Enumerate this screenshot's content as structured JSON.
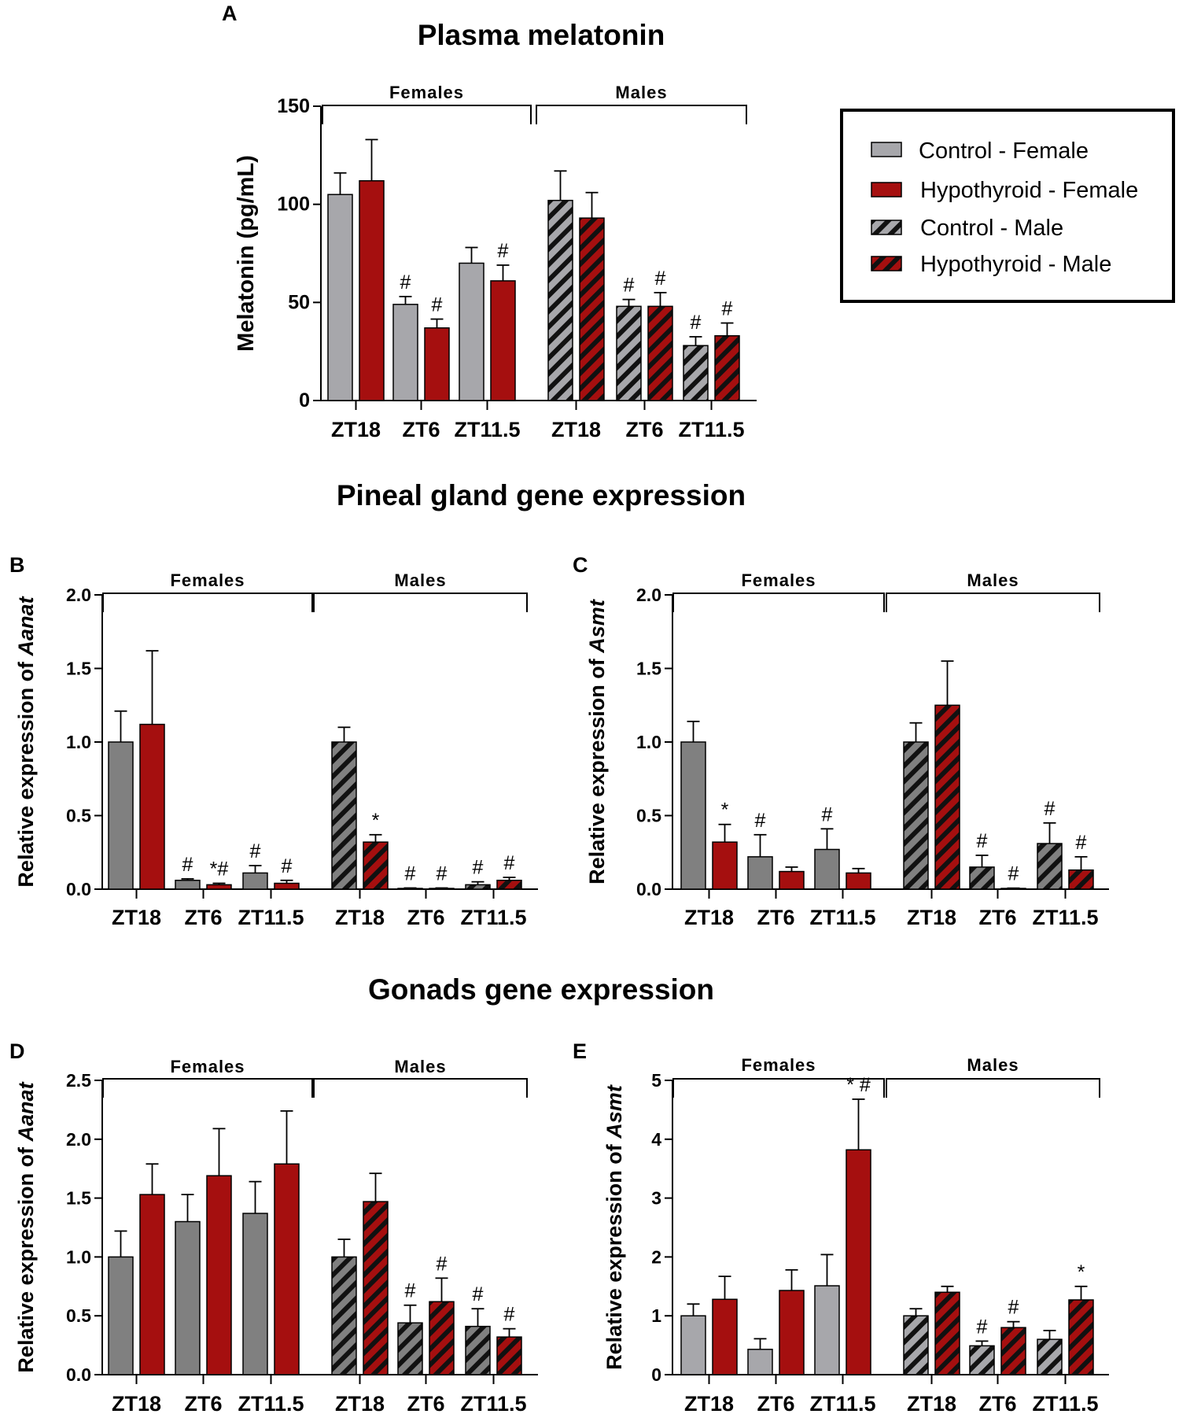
{
  "colors": {
    "control": "#a7a7ab",
    "control_dark": "#808080",
    "hypothyroid": "#a50f0f",
    "stripe": "#000000",
    "axis": "#000000"
  },
  "section_titles": {
    "pineal": "Pineal gland gene expression",
    "gonads": "Gonads gene expression"
  },
  "legend": {
    "items": [
      {
        "label": "Control - Female",
        "pattern": "solid-grey"
      },
      {
        "label": "Hypothyroid - Female",
        "pattern": "solid-red"
      },
      {
        "label": "Control - Male",
        "pattern": "hatched-grey"
      },
      {
        "label": "Hypothyroid - Male",
        "pattern": "hatched-red"
      }
    ]
  },
  "chart_data": [
    {
      "panel": "A",
      "type": "bar",
      "title": "Plasma melatonin",
      "ylabel": "Melatonin (pg/mL)",
      "ylabel_italic": "",
      "ylim": [
        0,
        150
      ],
      "yticks": [
        "0",
        "50",
        "100",
        "150"
      ],
      "groups": [
        "Females",
        "Males"
      ],
      "categories": [
        "ZT18",
        "ZT6",
        "ZT11.5",
        "ZT18",
        "ZT6",
        "ZT11.5"
      ],
      "series": [
        {
          "name": "Control",
          "values": [
            105,
            49,
            70,
            102,
            48,
            28
          ],
          "errors": [
            11,
            4,
            8,
            15,
            3.5,
            4.5
          ],
          "marks": [
            "",
            "#",
            "",
            "",
            "#",
            "#"
          ]
        },
        {
          "name": "Hypothyroid",
          "values": [
            112,
            37,
            61,
            93,
            48,
            33
          ],
          "errors": [
            21,
            4.5,
            8,
            13,
            7,
            6.5
          ],
          "marks": [
            "",
            "#",
            "#",
            "",
            "#",
            "#"
          ]
        }
      ]
    },
    {
      "panel": "B",
      "type": "bar",
      "title": "",
      "ylabel": "Relative expression of ",
      "ylabel_italic": "Aanat",
      "ylim": [
        0,
        2.0
      ],
      "yticks": [
        "0.0",
        "0.5",
        "1.0",
        "1.5",
        "2.0"
      ],
      "groups": [
        "Females",
        "Males"
      ],
      "categories": [
        "ZT18",
        "ZT6",
        "ZT11.5",
        "ZT18",
        "ZT6",
        "ZT11.5"
      ],
      "series": [
        {
          "name": "Control",
          "values": [
            1.0,
            0.06,
            0.11,
            1.0,
            0.005,
            0.03
          ],
          "errors": [
            0.21,
            0.01,
            0.05,
            0.1,
            0.003,
            0.02
          ],
          "marks": [
            "",
            "#",
            "#",
            "",
            "#",
            "#"
          ]
        },
        {
          "name": "Hypothyroid",
          "values": [
            1.12,
            0.03,
            0.04,
            0.32,
            0.005,
            0.06
          ],
          "errors": [
            0.5,
            0.01,
            0.02,
            0.05,
            0.003,
            0.02
          ],
          "marks": [
            "",
            "*#",
            "#",
            "*",
            "#",
            "#"
          ]
        }
      ]
    },
    {
      "panel": "C",
      "type": "bar",
      "title": "",
      "ylabel": "Relative expression of ",
      "ylabel_italic": "Asmt",
      "ylim": [
        0,
        2.0
      ],
      "yticks": [
        "0.0",
        "0.5",
        "1.0",
        "1.5",
        "2.0"
      ],
      "groups": [
        "Females",
        "Males"
      ],
      "categories": [
        "ZT18",
        "ZT6",
        "ZT11.5",
        "ZT18",
        "ZT6",
        "ZT11.5"
      ],
      "series": [
        {
          "name": "Control",
          "values": [
            1.0,
            0.22,
            0.27,
            1.0,
            0.15,
            0.31
          ],
          "errors": [
            0.14,
            0.15,
            0.14,
            0.13,
            0.08,
            0.14
          ],
          "marks": [
            "",
            "#",
            "#",
            "",
            "#",
            "#"
          ]
        },
        {
          "name": "Hypothyroid",
          "values": [
            0.32,
            0.12,
            0.11,
            1.25,
            0.005,
            0.13
          ],
          "errors": [
            0.12,
            0.03,
            0.03,
            0.3,
            0.002,
            0.09
          ],
          "marks": [
            "*",
            "",
            "",
            "",
            "#",
            "#"
          ]
        }
      ]
    },
    {
      "panel": "D",
      "type": "bar",
      "title": "",
      "ylabel": "Relative expression of ",
      "ylabel_italic": "Aanat",
      "ylim": [
        0,
        2.5
      ],
      "yticks": [
        "0.0",
        "0.5",
        "1.0",
        "1.5",
        "2.0",
        "2.5"
      ],
      "groups": [
        "Females",
        "Males"
      ],
      "categories": [
        "ZT18",
        "ZT6",
        "ZT11.5",
        "ZT18",
        "ZT6",
        "ZT11.5"
      ],
      "series": [
        {
          "name": "Control",
          "values": [
            1.0,
            1.3,
            1.37,
            1.0,
            0.44,
            0.41
          ],
          "errors": [
            0.22,
            0.23,
            0.27,
            0.15,
            0.15,
            0.15
          ],
          "marks": [
            "",
            "",
            "",
            "",
            "#",
            "#"
          ]
        },
        {
          "name": "Hypothyroid",
          "values": [
            1.53,
            1.69,
            1.79,
            1.47,
            0.62,
            0.32
          ],
          "errors": [
            0.26,
            0.4,
            0.45,
            0.24,
            0.2,
            0.07
          ],
          "marks": [
            "",
            "",
            "",
            "",
            "#",
            "#"
          ]
        }
      ]
    },
    {
      "panel": "E",
      "type": "bar",
      "title": "",
      "ylabel": "Relative expression of ",
      "ylabel_italic": "Asmt",
      "ylim": [
        0,
        5
      ],
      "yticks": [
        "0",
        "1",
        "2",
        "3",
        "4",
        "5"
      ],
      "groups": [
        "Females",
        "Males"
      ],
      "categories": [
        "ZT18",
        "ZT6",
        "ZT11.5",
        "ZT18",
        "ZT6",
        "ZT11.5"
      ],
      "series": [
        {
          "name": "Control",
          "values": [
            1.0,
            0.43,
            1.51,
            1.0,
            0.49,
            0.6
          ],
          "errors": [
            0.2,
            0.18,
            0.53,
            0.12,
            0.08,
            0.15
          ],
          "marks": [
            "",
            "",
            "",
            "",
            "#",
            ""
          ]
        },
        {
          "name": "Hypothyroid",
          "values": [
            1.28,
            1.43,
            3.82,
            1.4,
            0.8,
            1.27
          ],
          "errors": [
            0.39,
            0.35,
            0.86,
            0.1,
            0.1,
            0.23
          ],
          "marks": [
            "",
            "",
            "* #",
            "",
            "#",
            "*"
          ]
        }
      ]
    }
  ]
}
